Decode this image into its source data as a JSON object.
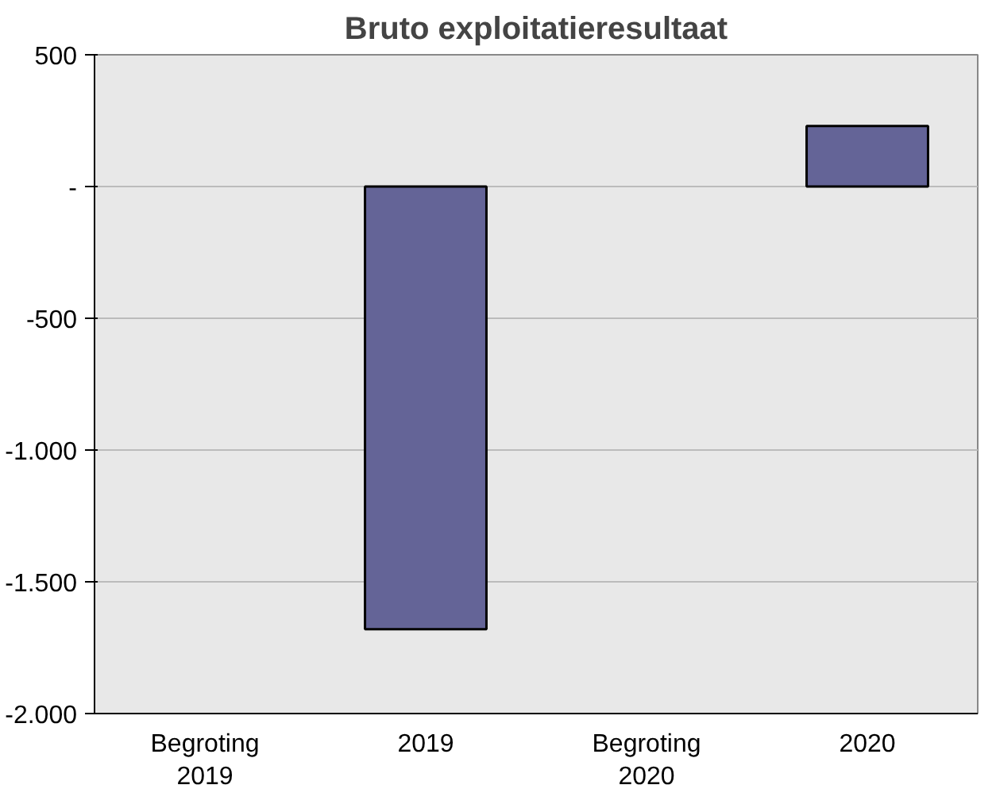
{
  "chart_data": {
    "type": "bar",
    "title": "Bruto exploitatieresultaat",
    "categories": [
      "Begroting\n2019",
      "2019",
      "Begroting\n2020",
      "2020"
    ],
    "values": [
      null,
      -1680,
      null,
      230
    ],
    "color": "#646497",
    "ylim": [
      -2000,
      500
    ],
    "yticks": [
      {
        "value": -2000,
        "label": "-2.000"
      },
      {
        "value": -1500,
        "label": "-1.500"
      },
      {
        "value": -1000,
        "label": "-1.000"
      },
      {
        "value": -500,
        "label": "-500"
      },
      {
        "value": 0,
        "label": "-"
      },
      {
        "value": 500,
        "label": "500"
      }
    ],
    "grid": "y"
  }
}
